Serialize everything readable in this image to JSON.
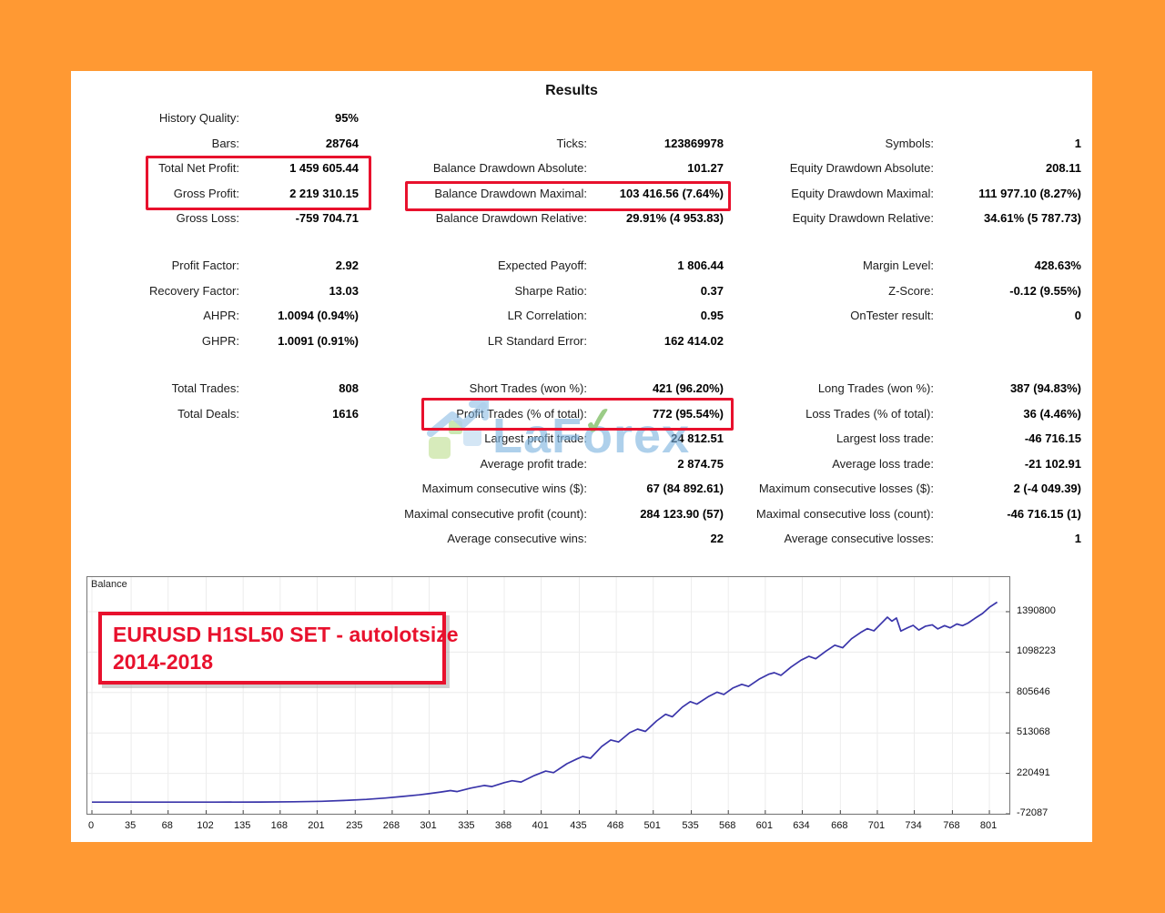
{
  "title": "Results",
  "stats": {
    "sections": [
      {
        "columns": [
          {
            "rows": [
              {
                "label": "History Quality:",
                "value": "95%"
              },
              {
                "label": "Bars:",
                "value": "28764"
              },
              {
                "label": "Total Net Profit:",
                "value": "1 459 605.44"
              },
              {
                "label": "Gross Profit:",
                "value": "2 219 310.15"
              },
              {
                "label": "Gross Loss:",
                "value": "-759 704.71"
              }
            ]
          },
          {
            "rows": [
              null,
              {
                "label": "Ticks:",
                "value": "123869978"
              },
              {
                "label": "Balance Drawdown Absolute:",
                "value": "101.27"
              },
              {
                "label": "Balance Drawdown Maximal:",
                "value": "103 416.56 (7.64%)"
              },
              {
                "label": "Balance Drawdown Relative:",
                "value": "29.91% (4 953.83)"
              }
            ]
          },
          {
            "rows": [
              null,
              {
                "label": "Symbols:",
                "value": "1"
              },
              {
                "label": "Equity Drawdown Absolute:",
                "value": "208.11"
              },
              {
                "label": "Equity Drawdown Maximal:",
                "value": "111 977.10 (8.27%)"
              },
              {
                "label": "Equity Drawdown Relative:",
                "value": "34.61% (5 787.73)"
              }
            ]
          }
        ]
      },
      {
        "columns": [
          {
            "rows": [
              {
                "label": "Profit Factor:",
                "value": "2.92"
              },
              {
                "label": "Recovery Factor:",
                "value": "13.03"
              },
              {
                "label": "AHPR:",
                "value": "1.0094 (0.94%)"
              },
              {
                "label": "GHPR:",
                "value": "1.0091 (0.91%)"
              }
            ]
          },
          {
            "rows": [
              {
                "label": "Expected Payoff:",
                "value": "1 806.44"
              },
              {
                "label": "Sharpe Ratio:",
                "value": "0.37"
              },
              {
                "label": "LR Correlation:",
                "value": "0.95"
              },
              {
                "label": "LR Standard Error:",
                "value": "162 414.02"
              }
            ]
          },
          {
            "rows": [
              {
                "label": "Margin Level:",
                "value": "428.63%"
              },
              {
                "label": "Z-Score:",
                "value": "-0.12 (9.55%)"
              },
              {
                "label": "OnTester result:",
                "value": "0"
              },
              null
            ]
          }
        ]
      },
      {
        "columns": [
          {
            "rows": [
              {
                "label": "Total Trades:",
                "value": "808"
              },
              {
                "label": "Total Deals:",
                "value": "1616"
              },
              null,
              null,
              null,
              null,
              null
            ]
          },
          {
            "rows": [
              {
                "label": "Short Trades (won %):",
                "value": "421 (96.20%)"
              },
              {
                "label": "Profit Trades (% of total):",
                "value": "772 (95.54%)"
              },
              {
                "label": "Largest profit trade:",
                "value": "24 812.51"
              },
              {
                "label": "Average profit trade:",
                "value": "2 874.75"
              },
              {
                "label": "Maximum consecutive wins ($):",
                "value": "67 (84 892.61)"
              },
              {
                "label": "Maximal consecutive profit (count):",
                "value": "284 123.90 (57)"
              },
              {
                "label": "Average consecutive wins:",
                "value": "22"
              }
            ]
          },
          {
            "rows": [
              {
                "label": "Long Trades (won %):",
                "value": "387 (94.83%)"
              },
              {
                "label": "Loss Trades (% of total):",
                "value": "36 (4.46%)"
              },
              {
                "label": "Largest loss trade:",
                "value": "-46 716.15"
              },
              {
                "label": "Average loss trade:",
                "value": "-21 102.91"
              },
              {
                "label": "Maximum consecutive losses ($):",
                "value": "2 (-4 049.39)"
              },
              {
                "label": "Maximal consecutive loss (count):",
                "value": "-46 716.15 (1)"
              },
              {
                "label": "Average consecutive losses:",
                "value": "1"
              }
            ]
          }
        ]
      }
    ]
  },
  "watermark": {
    "brand": "LaForex",
    "pre": "LaF",
    "o": "o",
    "post": "rex",
    "check_glyph": "✓"
  },
  "chart_data": {
    "type": "line",
    "series_label": "Balance",
    "annotation": {
      "line1": "EURUSD H1SL50 SET - autolotsize",
      "line2": "2014-2018"
    },
    "xlabel": "",
    "ylabel": "",
    "grid": true,
    "legend_position": "none",
    "xlim": [
      0,
      822
    ],
    "ylim": [
      -72087,
      1641053
    ],
    "x_ticks": [
      0,
      35,
      68,
      102,
      135,
      168,
      201,
      235,
      268,
      301,
      335,
      368,
      401,
      435,
      468,
      501,
      535,
      568,
      601,
      634,
      668,
      701,
      734,
      768,
      801
    ],
    "y_ticks": [
      -72087,
      220491,
      513068,
      805646,
      1098223,
      1390800
    ],
    "series": [
      {
        "name": "Balance",
        "points": [
          [
            0,
            12000
          ],
          [
            60,
            12200
          ],
          [
            110,
            12500
          ],
          [
            150,
            13200
          ],
          [
            180,
            15000
          ],
          [
            205,
            18500
          ],
          [
            225,
            24000
          ],
          [
            245,
            32000
          ],
          [
            262,
            42000
          ],
          [
            278,
            54000
          ],
          [
            292,
            65000
          ],
          [
            300,
            73000
          ],
          [
            312,
            86000
          ],
          [
            320,
            96000
          ],
          [
            326,
            89000
          ],
          [
            338,
            114000
          ],
          [
            350,
            133000
          ],
          [
            357,
            125000
          ],
          [
            368,
            153000
          ],
          [
            375,
            167000
          ],
          [
            383,
            158000
          ],
          [
            395,
            205000
          ],
          [
            405,
            237000
          ],
          [
            412,
            226000
          ],
          [
            424,
            290000
          ],
          [
            433,
            325000
          ],
          [
            438,
            343000
          ],
          [
            445,
            330000
          ],
          [
            455,
            415000
          ],
          [
            463,
            462000
          ],
          [
            470,
            448000
          ],
          [
            480,
            515000
          ],
          [
            487,
            541000
          ],
          [
            494,
            524000
          ],
          [
            504,
            600000
          ],
          [
            512,
            648000
          ],
          [
            518,
            630000
          ],
          [
            527,
            700000
          ],
          [
            534,
            740000
          ],
          [
            540,
            722000
          ],
          [
            550,
            775000
          ],
          [
            558,
            808000
          ],
          [
            564,
            792000
          ],
          [
            572,
            838000
          ],
          [
            580,
            865000
          ],
          [
            586,
            850000
          ],
          [
            596,
            905000
          ],
          [
            604,
            938000
          ],
          [
            609,
            949000
          ],
          [
            615,
            930000
          ],
          [
            624,
            990000
          ],
          [
            633,
            1040000
          ],
          [
            640,
            1068000
          ],
          [
            646,
            1050000
          ],
          [
            655,
            1105000
          ],
          [
            663,
            1148000
          ],
          [
            670,
            1130000
          ],
          [
            678,
            1195000
          ],
          [
            686,
            1240000
          ],
          [
            692,
            1268000
          ],
          [
            698,
            1252000
          ],
          [
            705,
            1310000
          ],
          [
            710,
            1351000
          ],
          [
            714,
            1322000
          ],
          [
            718,
            1345000
          ],
          [
            722,
            1250000
          ],
          [
            728,
            1275000
          ],
          [
            733,
            1292000
          ],
          [
            738,
            1258000
          ],
          [
            744,
            1286000
          ],
          [
            750,
            1296000
          ],
          [
            755,
            1266000
          ],
          [
            761,
            1290000
          ],
          [
            766,
            1274000
          ],
          [
            772,
            1302000
          ],
          [
            777,
            1290000
          ],
          [
            782,
            1308000
          ],
          [
            788,
            1342000
          ],
          [
            795,
            1378000
          ],
          [
            801,
            1422000
          ],
          [
            808,
            1459605
          ]
        ]
      }
    ]
  },
  "colors": {
    "background_orange": "#ff9933",
    "highlight_red": "#e8112d",
    "balance_line_blue": "#3a35aa",
    "grid_gray": "#ececec",
    "watermark_blue": "#7db4e0",
    "watermark_green": "#5fae3f"
  }
}
